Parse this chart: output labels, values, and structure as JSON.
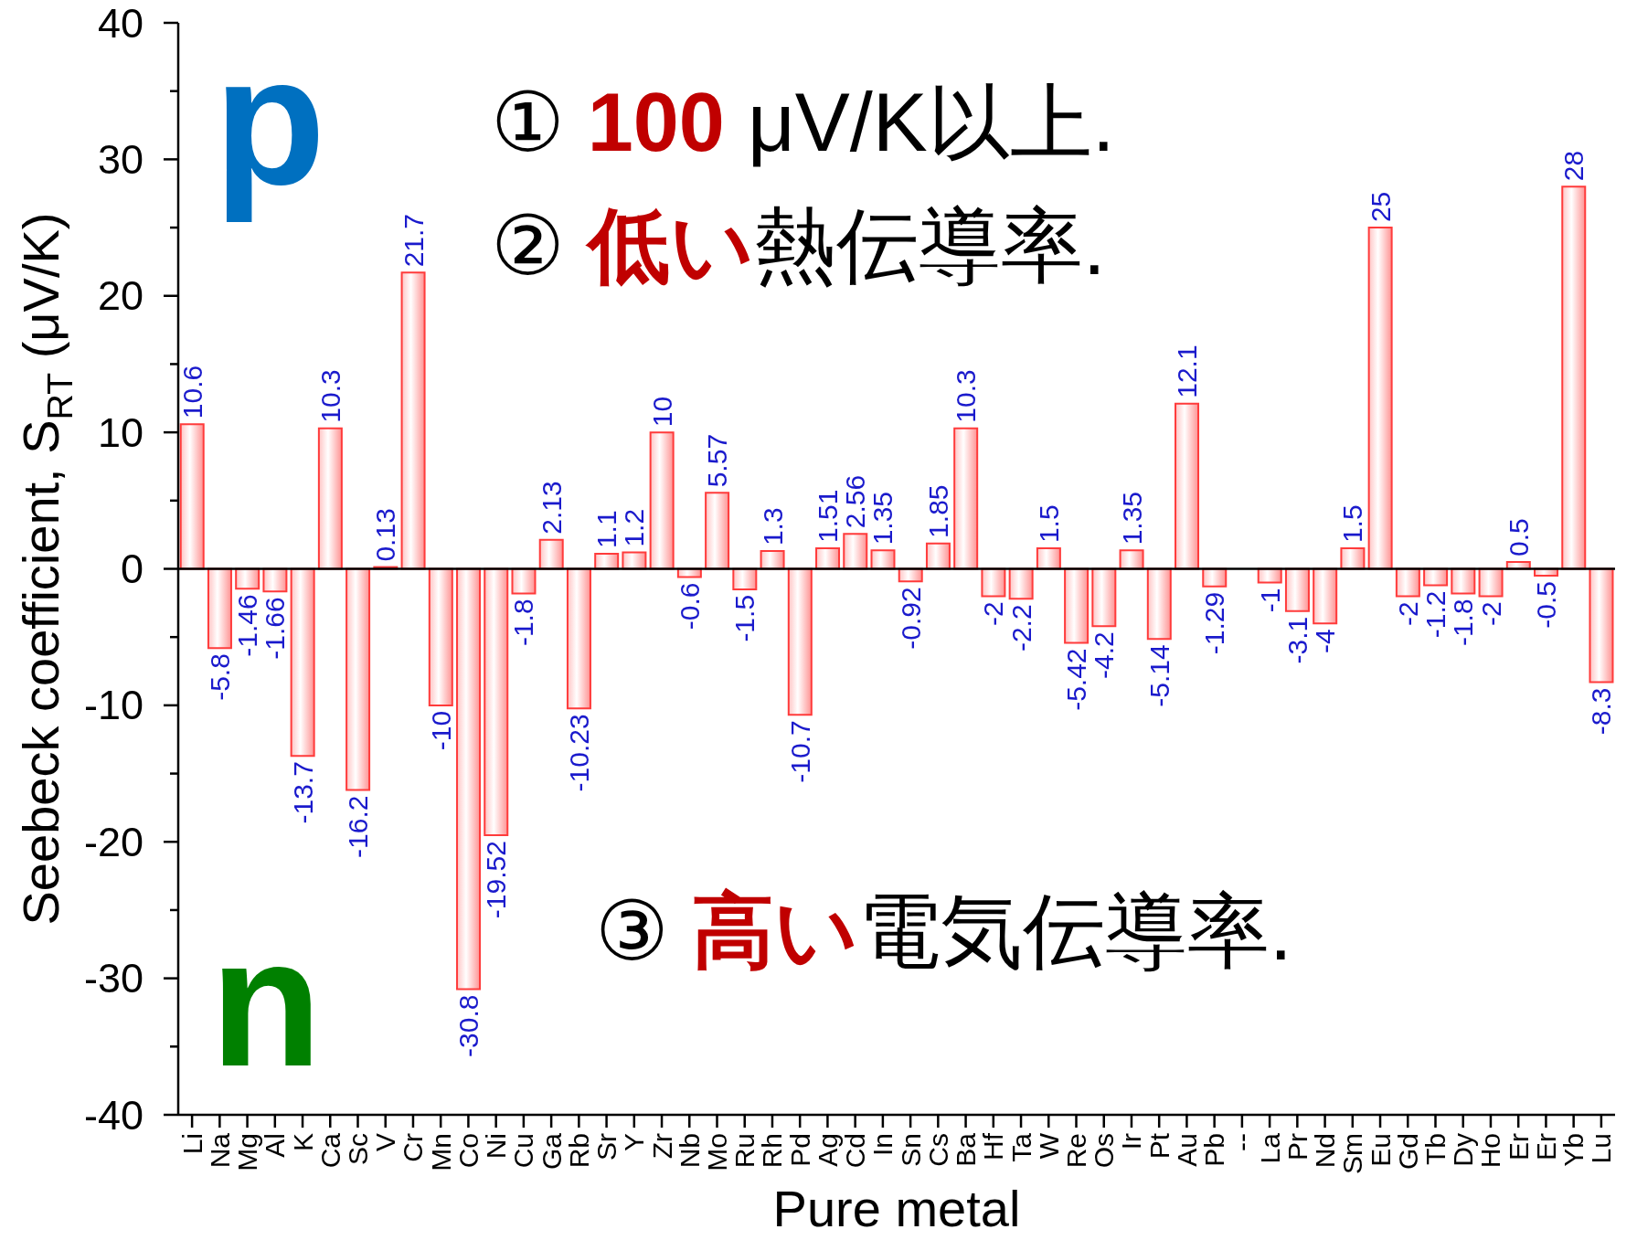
{
  "chart_data": {
    "type": "bar",
    "xlabel": "Pure metal",
    "ylabel": "Seebeck coefficient, S$_{RT}$ (μV/K)",
    "categories": [
      "Li",
      "Na",
      "Mg",
      "Al",
      "K",
      "Ca",
      "Sc",
      "V",
      "Cr",
      "Mn",
      "Co",
      "Ni",
      "Cu",
      "Ga",
      "Rb",
      "Sr",
      "Y",
      "Zr",
      "Nb",
      "Mo",
      "Ru",
      "Rh",
      "Pd",
      "Ag",
      "Cd",
      "In",
      "Sn",
      "Cs",
      "Ba",
      "Hf",
      "Ta",
      "W",
      "Re",
      "Os",
      "Ir",
      "Pt",
      "Au",
      "Pb",
      "--",
      "La",
      "Pr",
      "Nd",
      "Sm",
      "Eu",
      "Gd",
      "Tb",
      "Dy",
      "Ho",
      "Er",
      "Er",
      "Yb",
      "Lu"
    ],
    "values": [
      10.6,
      -5.8,
      -1.46,
      -1.66,
      -13.7,
      10.3,
      -16.2,
      0.13,
      21.7,
      -10,
      -30.8,
      -19.52,
      -1.8,
      2.13,
      -10.23,
      1.1,
      1.2,
      10,
      -0.6,
      5.57,
      -1.5,
      1.3,
      -10.7,
      1.51,
      2.56,
      1.35,
      -0.92,
      1.85,
      10.3,
      -2,
      -2.2,
      1.5,
      -5.42,
      -4.2,
      1.35,
      -5.14,
      12.1,
      -1.29,
      null,
      -1,
      -3.1,
      -4,
      1.5,
      25,
      -2,
      -1.2,
      -1.8,
      -2,
      0.5,
      -0.5,
      28,
      -8.3
    ],
    "color": "#ff3b3b",
    "ylim": [
      -40,
      40
    ],
    "yticks": [
      -40,
      {
        "value": -35,
        "label": null
      },
      -30,
      {
        "value": -25,
        "label": null
      },
      -20,
      {
        "value": -15,
        "label": null
      },
      -10,
      {
        "value": -5,
        "label": null
      },
      0,
      {
        "value": 5,
        "label": null
      },
      10,
      {
        "value": 15,
        "label": null
      },
      20,
      {
        "value": 25,
        "label": null
      },
      30,
      {
        "value": 35,
        "label": null
      },
      40
    ],
    "data_labels": true,
    "ref_lines": [
      {
        "axis": "y",
        "value": 0,
        "color": "#000000"
      }
    ],
    "annotations": [
      "p",
      "n",
      "① 100 μV/K以上.",
      "② 低い熱伝導率.",
      "③ 高い電気伝導率."
    ]
  }
}
